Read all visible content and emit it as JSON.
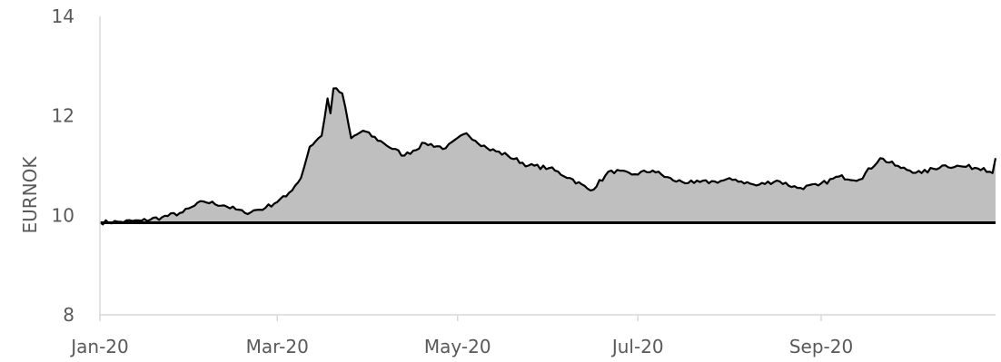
{
  "chart_data": {
    "type": "area",
    "title": "",
    "xlabel": "",
    "ylabel": "EURNOK",
    "ylim": [
      8,
      14
    ],
    "yticks": [
      "8",
      "10",
      "12",
      "14"
    ],
    "xlim": [
      "2020-01-01",
      "2020-10-30"
    ],
    "xticks": [
      {
        "date": "2020-01-01",
        "label": "Jan-20"
      },
      {
        "date": "2020-03-01",
        "label": "Mar-20"
      },
      {
        "date": "2020-05-01",
        "label": "May-20"
      },
      {
        "date": "2020-07-01",
        "label": "Jul-20"
      },
      {
        "date": "2020-09-01",
        "label": "Sep-20"
      }
    ],
    "baseline": 9.85,
    "grid": false,
    "fill_color": "#bfbfbf",
    "line_color": "#000000",
    "series": [
      {
        "x": [
          "2020-01-01",
          "2020-01-08",
          "2020-01-15",
          "2020-01-22",
          "2020-01-29",
          "2020-02-05",
          "2020-02-12",
          "2020-02-19",
          "2020-02-26",
          "2020-03-04",
          "2020-03-09",
          "2020-03-12",
          "2020-03-16",
          "2020-03-18",
          "2020-03-19",
          "2020-03-20",
          "2020-03-23",
          "2020-03-26",
          "2020-03-30",
          "2020-04-06",
          "2020-04-13",
          "2020-04-20",
          "2020-04-27",
          "2020-05-04",
          "2020-05-11",
          "2020-05-18",
          "2020-05-25",
          "2020-06-01",
          "2020-06-08",
          "2020-06-15",
          "2020-06-22",
          "2020-06-29",
          "2020-07-06",
          "2020-07-13",
          "2020-07-20",
          "2020-07-27",
          "2020-08-03",
          "2020-08-10",
          "2020-08-17",
          "2020-08-24",
          "2020-08-31",
          "2020-09-07",
          "2020-09-14",
          "2020-09-21",
          "2020-09-28",
          "2020-10-05",
          "2020-10-12",
          "2020-10-19",
          "2020-10-26",
          "2020-10-29",
          "2020-10-30"
        ],
        "values": [
          9.86,
          9.87,
          9.89,
          9.96,
          10.06,
          10.28,
          10.2,
          10.05,
          10.15,
          10.38,
          10.75,
          11.38,
          11.6,
          12.35,
          12.05,
          12.55,
          12.45,
          11.55,
          11.7,
          11.45,
          11.2,
          11.45,
          11.35,
          11.65,
          11.35,
          11.2,
          11.0,
          10.95,
          10.75,
          10.5,
          10.9,
          10.82,
          10.9,
          10.7,
          10.65,
          10.68,
          10.72,
          10.6,
          10.7,
          10.55,
          10.6,
          10.78,
          10.72,
          11.15,
          10.95,
          10.85,
          11.0,
          10.98,
          10.95,
          10.85,
          11.15
        ]
      }
    ]
  }
}
